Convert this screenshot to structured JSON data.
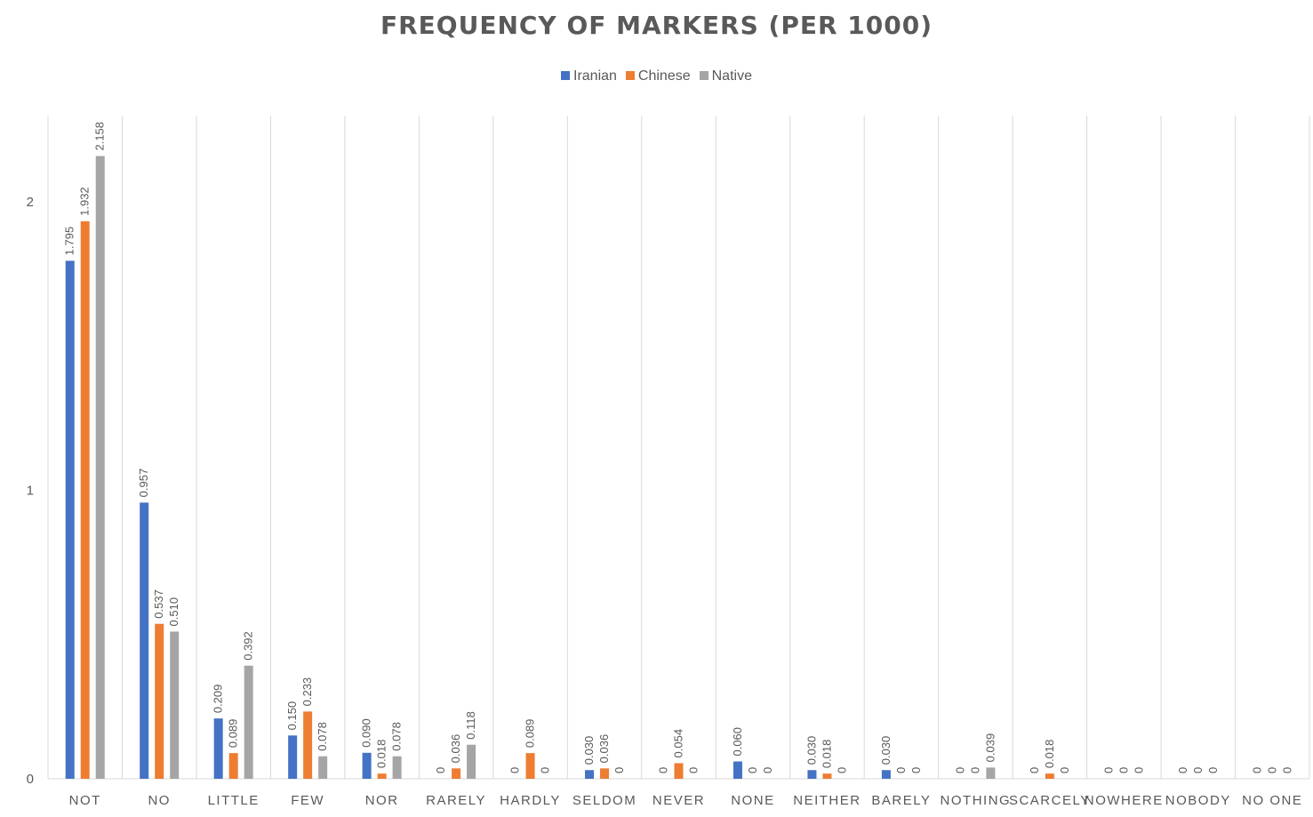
{
  "chart_data": {
    "type": "bar",
    "title": "FREQUENCY OF MARKERS (PER 1000)",
    "xlabel": "",
    "ylabel": "",
    "ylim": [
      0,
      2.3
    ],
    "yticks": [
      0,
      1,
      2
    ],
    "grid": "vertical separators between categories",
    "legend_position": "top-center",
    "categories": [
      "NOT",
      "NO",
      "LITTLE",
      "FEW",
      "NOR",
      "RARELY",
      "HARDLY",
      "SELDOM",
      "NEVER",
      "NONE",
      "NEITHER",
      "BARELY",
      "NOTHING",
      "SCARCELY",
      "NOWHERE",
      "NOBODY",
      "NO ONE"
    ],
    "series": [
      {
        "name": "Iranian",
        "color": "#4472C4",
        "values": [
          1.795,
          0.957,
          0.209,
          0.15,
          0.09,
          0,
          0,
          0.03,
          0,
          0.06,
          0.03,
          0.03,
          0,
          0,
          0,
          0,
          0
        ],
        "labels": [
          "1.795",
          "0.957",
          "0.209",
          "0.150",
          "0.090",
          "0",
          "0",
          "0.030",
          "0",
          "0.060",
          "0.030",
          "0.030",
          "0",
          "0",
          "0",
          "0",
          "0"
        ]
      },
      {
        "name": "Chinese",
        "color": "#ED7D31",
        "values": [
          1.932,
          0.537,
          0.089,
          0.233,
          0.018,
          0.036,
          0.089,
          0.036,
          0.054,
          0,
          0.018,
          0,
          0,
          0.018,
          0,
          0,
          0
        ],
        "labels": [
          "1.932",
          "0.537",
          "0.089",
          "0.233",
          "0.018",
          "0.036",
          "0.089",
          "0.036",
          "0.054",
          "0",
          "0.018",
          "0",
          "0",
          "0.018",
          "0",
          "0",
          "0"
        ]
      },
      {
        "name": "Native",
        "color": "#A5A5A5",
        "values": [
          2.158,
          0.51,
          0.392,
          0.078,
          0.078,
          0.118,
          0,
          0,
          0,
          0,
          0,
          0,
          0.039,
          0,
          0,
          0,
          0
        ],
        "labels": [
          "2.158",
          "0.510",
          "0.392",
          "0.078",
          "0.078",
          "0.118",
          "0",
          "0",
          "0",
          "0",
          "0",
          "0",
          "0.039",
          "0",
          "0",
          "0",
          "0"
        ]
      }
    ]
  }
}
